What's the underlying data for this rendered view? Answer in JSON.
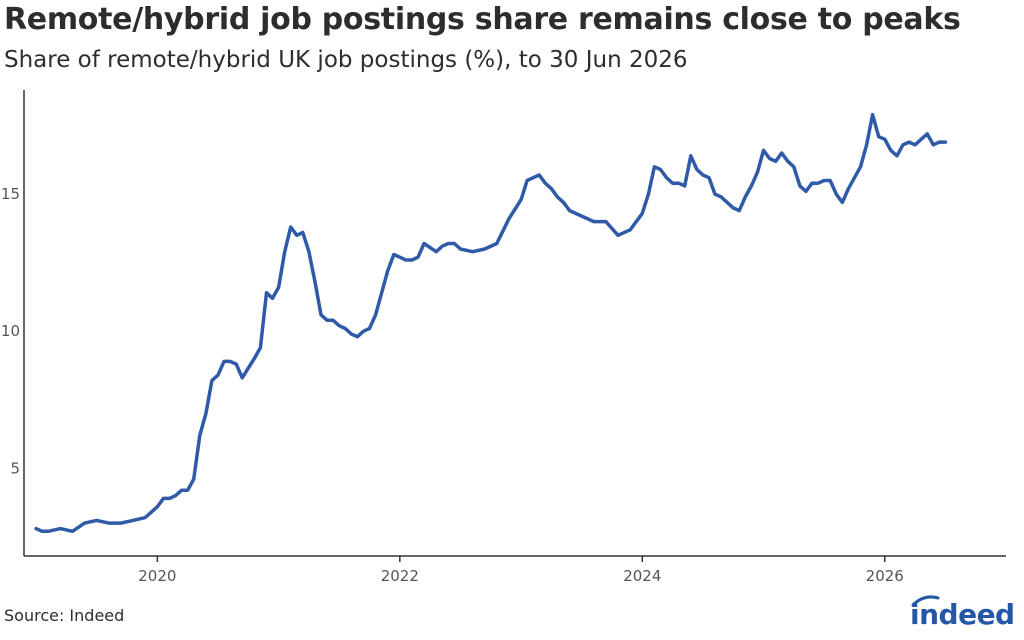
{
  "header": {
    "title": "Remote/hybrid job postings share remains close to peaks",
    "subtitle": "Share of remote/hybrid UK job postings (%), to 30 Jun 2026"
  },
  "footer": {
    "source": "Source: Indeed",
    "logo_text": "indeed",
    "logo_color": "#2557a7"
  },
  "chart_data": {
    "type": "line",
    "title": "Remote/hybrid job postings share remains close to peaks",
    "subtitle": "Share of remote/hybrid UK job postings (%), to 30 Jun 2026",
    "xlabel": "",
    "ylabel": "",
    "x_ticks": [
      2020,
      2022,
      2024,
      2026
    ],
    "y_ticks": [
      5,
      10,
      15
    ],
    "xlim": [
      2018.9,
      2027.0
    ],
    "ylim": [
      1.8,
      18.8
    ],
    "grid": false,
    "legend": "none",
    "line_color": "#2e5aa8",
    "series": [
      {
        "x": [
          2019.0,
          2019.05,
          2019.1,
          2019.2,
          2019.3,
          2019.4,
          2019.5,
          2019.6,
          2019.7,
          2019.8,
          2019.9,
          2020.0,
          2020.05,
          2020.1,
          2020.15,
          2020.2,
          2020.25,
          2020.3,
          2020.35,
          2020.4,
          2020.45,
          2020.5,
          2020.55,
          2020.6,
          2020.65,
          2020.7,
          2020.8,
          2020.85,
          2020.9,
          2020.95,
          2021.0,
          2021.05,
          2021.1,
          2021.15,
          2021.2,
          2021.25,
          2021.3,
          2021.35,
          2021.4,
          2021.45,
          2021.5,
          2021.55,
          2021.6,
          2021.65,
          2021.7,
          2021.75,
          2021.8,
          2021.9,
          2021.95,
          2022.0,
          2022.05,
          2022.1,
          2022.15,
          2022.2,
          2022.3,
          2022.35,
          2022.4,
          2022.45,
          2022.5,
          2022.6,
          2022.7,
          2022.8,
          2022.9,
          2023.0,
          2023.05,
          2023.1,
          2023.15,
          2023.2,
          2023.25,
          2023.3,
          2023.35,
          2023.4,
          2023.5,
          2023.6,
          2023.7,
          2023.8,
          2023.9,
          2024.0,
          2024.05,
          2024.1,
          2024.15,
          2024.2,
          2024.25,
          2024.3,
          2024.35,
          2024.4,
          2024.45,
          2024.5,
          2024.55,
          2024.6,
          2024.65,
          2024.7,
          2024.75,
          2024.8,
          2024.85,
          2024.9,
          2024.95,
          2025.0,
          2025.05,
          2025.1,
          2025.15,
          2025.2,
          2025.25,
          2025.3,
          2025.35,
          2025.4,
          2025.45,
          2025.5,
          2025.55,
          2025.6,
          2025.65,
          2025.7,
          2025.75,
          2025.8,
          2025.85,
          2025.9,
          2025.95,
          2026.0,
          2026.05,
          2026.1,
          2026.15,
          2026.2,
          2026.25,
          2026.3,
          2026.35,
          2026.4,
          2026.45,
          2026.5
        ],
        "values": [
          2.8,
          2.7,
          2.7,
          2.8,
          2.7,
          3.0,
          3.1,
          3.0,
          3.0,
          3.1,
          3.2,
          3.6,
          3.9,
          3.9,
          4.0,
          4.2,
          4.2,
          4.6,
          6.2,
          7.0,
          8.2,
          8.4,
          8.9,
          8.9,
          8.8,
          8.3,
          9.0,
          9.4,
          11.4,
          11.2,
          11.6,
          12.9,
          13.8,
          13.5,
          13.6,
          12.9,
          11.8,
          10.6,
          10.4,
          10.4,
          10.2,
          10.1,
          9.9,
          9.8,
          10.0,
          10.1,
          10.6,
          12.2,
          12.8,
          12.7,
          12.6,
          12.6,
          12.7,
          13.2,
          12.9,
          13.1,
          13.2,
          13.2,
          13.0,
          12.9,
          13.0,
          13.2,
          14.1,
          14.8,
          15.5,
          15.6,
          15.7,
          15.4,
          15.2,
          14.9,
          14.7,
          14.4,
          14.2,
          14.0,
          14.0,
          13.5,
          13.7,
          14.3,
          15.0,
          16.0,
          15.9,
          15.6,
          15.4,
          15.4,
          15.3,
          16.4,
          15.9,
          15.7,
          15.6,
          15.0,
          14.9,
          14.7,
          14.5,
          14.4,
          14.9,
          15.3,
          15.8,
          16.6,
          16.3,
          16.2,
          16.5,
          16.2,
          16.0,
          15.3,
          15.1,
          15.4,
          15.4,
          15.5,
          15.5,
          15.0,
          14.7,
          15.2,
          15.6,
          16.0,
          16.8,
          17.9,
          17.1,
          17.0,
          16.6,
          16.4,
          16.8,
          16.9,
          16.8,
          17.0,
          17.2,
          16.8,
          16.9,
          16.9
        ]
      }
    ]
  }
}
